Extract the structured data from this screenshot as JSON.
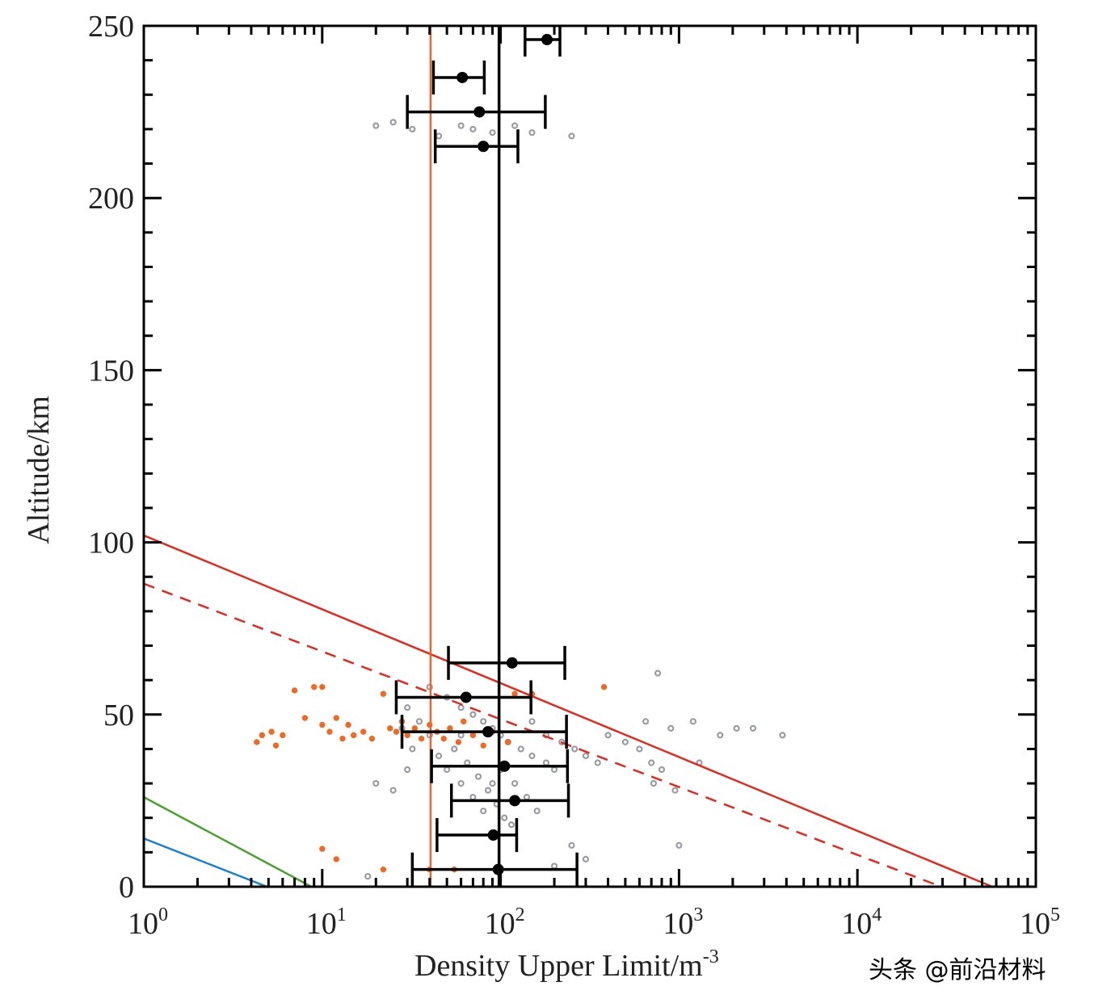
{
  "chart_data": {
    "type": "scatter",
    "title": "",
    "xlabel": "Density Upper Limit/m",
    "xlabel_sup": "-3",
    "ylabel": "Altitude/km",
    "xscale": "log",
    "xlim": [
      1,
      100000
    ],
    "ylim": [
      0,
      250
    ],
    "x_ticks": [
      {
        "base": "10",
        "exp": "0",
        "v": 1
      },
      {
        "base": "10",
        "exp": "1",
        "v": 10
      },
      {
        "base": "10",
        "exp": "2",
        "v": 100
      },
      {
        "base": "10",
        "exp": "3",
        "v": 1000
      },
      {
        "base": "10",
        "exp": "4",
        "v": 10000
      },
      {
        "base": "10",
        "exp": "5",
        "v": 100000
      }
    ],
    "y_ticks": [
      0,
      50,
      100,
      150,
      200,
      250
    ],
    "error_bars": [
      {
        "alt": 246,
        "x": 182,
        "lo": 137,
        "hi": 215
      },
      {
        "alt": 235,
        "x": 61,
        "lo": 42,
        "hi": 81
      },
      {
        "alt": 225,
        "x": 76,
        "lo": 30,
        "hi": 178
      },
      {
        "alt": 215,
        "x": 80,
        "lo": 43,
        "hi": 125
      },
      {
        "alt": 65,
        "x": 116,
        "lo": 51,
        "hi": 229
      },
      {
        "alt": 55,
        "x": 64,
        "lo": 26,
        "hi": 148
      },
      {
        "alt": 45,
        "x": 85,
        "lo": 28,
        "hi": 234
      },
      {
        "alt": 35,
        "x": 105,
        "lo": 41,
        "hi": 237
      },
      {
        "alt": 25,
        "x": 120,
        "lo": 53,
        "hi": 240
      },
      {
        "alt": 15,
        "x": 91,
        "lo": 44,
        "hi": 123
      },
      {
        "alt": 5,
        "x": 97,
        "lo": 32,
        "hi": 268
      }
    ],
    "vlines": [
      {
        "x": 40.5,
        "color": "#e8642a"
      },
      {
        "x": 98,
        "color": "#000000"
      }
    ],
    "lines": [
      {
        "name": "red-solid",
        "color": "#e02a20",
        "dash": false,
        "points": [
          [
            1,
            102
          ],
          [
            57000,
            0
          ]
        ]
      },
      {
        "name": "red-dashed",
        "color": "#e02a20",
        "dash": true,
        "points": [
          [
            1,
            88
          ],
          [
            29500,
            0
          ]
        ]
      },
      {
        "name": "green",
        "color": "#4aa02c",
        "dash": false,
        "points": [
          [
            1,
            26
          ],
          [
            8.7,
            0
          ]
        ]
      },
      {
        "name": "blue",
        "color": "#1a7fd0",
        "dash": false,
        "points": [
          [
            1,
            14
          ],
          [
            4.9,
            0
          ]
        ]
      }
    ],
    "series": [
      {
        "name": "gray",
        "color": "#9a9ca3",
        "points": [
          [
            20,
            221
          ],
          [
            25,
            222
          ],
          [
            32,
            220
          ],
          [
            45,
            218
          ],
          [
            60,
            221
          ],
          [
            70,
            220
          ],
          [
            90,
            219
          ],
          [
            120,
            221
          ],
          [
            150,
            219
          ],
          [
            250,
            218
          ],
          [
            40,
            58
          ],
          [
            50,
            55
          ],
          [
            60,
            52
          ],
          [
            70,
            50
          ],
          [
            80,
            48
          ],
          [
            90,
            46
          ],
          [
            100,
            44
          ],
          [
            110,
            42
          ],
          [
            130,
            40
          ],
          [
            150,
            38
          ],
          [
            180,
            36
          ],
          [
            200,
            34
          ],
          [
            60,
            44
          ],
          [
            55,
            40
          ],
          [
            65,
            36
          ],
          [
            75,
            32
          ],
          [
            85,
            28
          ],
          [
            95,
            24
          ],
          [
            105,
            20
          ],
          [
            115,
            18
          ],
          [
            70,
            26
          ],
          [
            80,
            22
          ],
          [
            90,
            30
          ],
          [
            100,
            34
          ],
          [
            120,
            30
          ],
          [
            140,
            26
          ],
          [
            160,
            22
          ],
          [
            60,
            30
          ],
          [
            50,
            34
          ],
          [
            45,
            38
          ],
          [
            40,
            44
          ],
          [
            35,
            48
          ],
          [
            30,
            52
          ],
          [
            28,
            46
          ],
          [
            32,
            40
          ],
          [
            150,
            48
          ],
          [
            180,
            44
          ],
          [
            220,
            42
          ],
          [
            260,
            40
          ],
          [
            300,
            38
          ],
          [
            350,
            36
          ],
          [
            400,
            44
          ],
          [
            500,
            42
          ],
          [
            600,
            40
          ],
          [
            700,
            36
          ],
          [
            800,
            34
          ],
          [
            650,
            48
          ],
          [
            760,
            62
          ],
          [
            900,
            46
          ],
          [
            1200,
            48
          ],
          [
            1700,
            44
          ],
          [
            2100,
            46
          ],
          [
            2600,
            46
          ],
          [
            3800,
            44
          ],
          [
            1300,
            36
          ],
          [
            950,
            28
          ],
          [
            720,
            30
          ],
          [
            20,
            30
          ],
          [
            25,
            28
          ],
          [
            30,
            34
          ],
          [
            250,
            12
          ],
          [
            300,
            8
          ],
          [
            1000,
            12
          ],
          [
            200,
            6
          ],
          [
            18,
            3
          ]
        ]
      },
      {
        "name": "orange",
        "color": "#ee6a24",
        "points": [
          [
            4.3,
            42
          ],
          [
            4.6,
            44
          ],
          [
            5.2,
            45
          ],
          [
            5.5,
            41
          ],
          [
            6,
            44
          ],
          [
            7,
            57
          ],
          [
            8,
            49
          ],
          [
            9,
            58
          ],
          [
            10,
            58
          ],
          [
            10,
            47
          ],
          [
            11,
            45
          ],
          [
            12,
            49
          ],
          [
            13,
            43
          ],
          [
            14,
            47
          ],
          [
            15,
            44
          ],
          [
            17,
            45
          ],
          [
            19,
            43
          ],
          [
            22,
            56
          ],
          [
            24,
            46
          ],
          [
            26,
            45
          ],
          [
            28,
            48
          ],
          [
            30,
            44
          ],
          [
            33,
            46
          ],
          [
            36,
            43
          ],
          [
            40,
            47
          ],
          [
            44,
            45
          ],
          [
            48,
            43
          ],
          [
            52,
            46
          ],
          [
            58,
            42
          ],
          [
            62,
            48
          ],
          [
            70,
            44
          ],
          [
            80,
            41
          ],
          [
            90,
            45
          ],
          [
            110,
            42
          ],
          [
            120,
            56
          ],
          [
            150,
            56
          ],
          [
            380,
            58
          ],
          [
            10,
            11
          ],
          [
            12,
            8
          ],
          [
            22,
            5
          ],
          [
            40,
            5
          ],
          [
            55,
            5
          ]
        ]
      }
    ]
  },
  "watermark": "头条 @前沿材料"
}
